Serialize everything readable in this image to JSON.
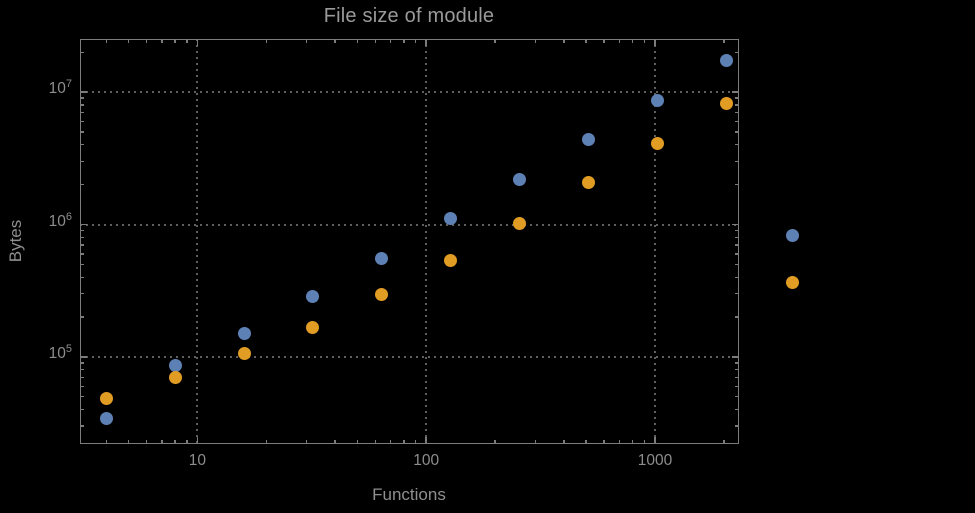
{
  "chart_data": {
    "type": "scatter",
    "title": "File size of module",
    "xlabel": "Functions",
    "ylabel": "Bytes",
    "x_scale": "log",
    "y_scale": "log",
    "xlim": [
      3.07,
      2318
    ],
    "ylim": [
      22200,
      25400000
    ],
    "grid": true,
    "legend": "none",
    "frame_color": "#7c7c7c",
    "gridline_color": "#5f5f5f",
    "label_color": "#8d8d8d",
    "x_major_ticks": [
      {
        "label": "10",
        "value": 10
      },
      {
        "label": "100",
        "value": 100
      },
      {
        "label": "1000",
        "value": 1000
      }
    ],
    "y_major_ticks": [
      {
        "base": "10",
        "exp": "5",
        "value": 100000
      },
      {
        "base": "10",
        "exp": "6",
        "value": 1000000
      },
      {
        "base": "10",
        "exp": "7",
        "value": 10000000
      }
    ],
    "series": [
      {
        "name": "blue",
        "color": "#5E81B5",
        "points": [
          [
            4,
            34000
          ],
          [
            8,
            85500
          ],
          [
            16,
            151000
          ],
          [
            32,
            288000
          ],
          [
            64,
            556000
          ],
          [
            128,
            1110000
          ],
          [
            256,
            2180000
          ],
          [
            512,
            4370000
          ],
          [
            1024,
            8600000
          ],
          [
            2048,
            17200000
          ],
          [
            4000,
            823000
          ]
        ]
      },
      {
        "name": "orange",
        "color": "#E19C24",
        "points": [
          [
            4,
            48800
          ],
          [
            8,
            70300
          ],
          [
            16,
            106000
          ],
          [
            32,
            168000
          ],
          [
            64,
            297000
          ],
          [
            128,
            537000
          ],
          [
            256,
            1020000
          ],
          [
            512,
            2070000
          ],
          [
            1024,
            4100000
          ],
          [
            2048,
            8220000
          ],
          [
            4000,
            362000
          ]
        ]
      }
    ]
  }
}
